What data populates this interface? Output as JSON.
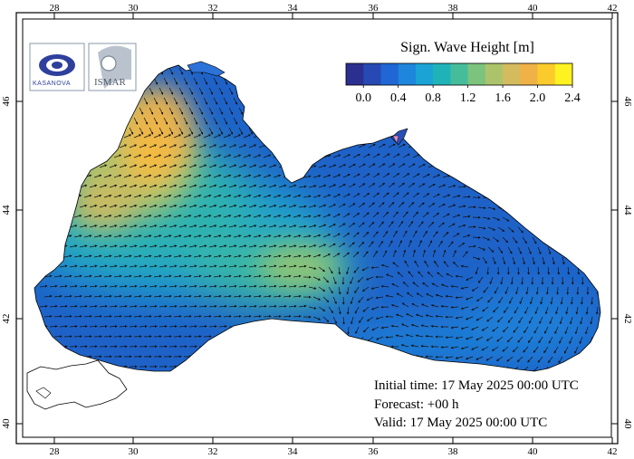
{
  "legend": {
    "title": "Sign. Wave Height [m]",
    "tick_labels": [
      "0.0",
      "0.4",
      "0.8",
      "1.2",
      "1.6",
      "2.0",
      "2.4"
    ],
    "colors": [
      "#2b2f8f",
      "#2749b4",
      "#2066d4",
      "#1e86dc",
      "#1aa3d4",
      "#1fb3b8",
      "#46bd9a",
      "#7cc47d",
      "#acc36c",
      "#d3bb5e",
      "#f0b247",
      "#fbcb2c",
      "#fff221"
    ]
  },
  "axes": {
    "lon_ticks": [
      "28",
      "30",
      "32",
      "34",
      "36",
      "38",
      "40",
      "42"
    ],
    "lat_ticks": [
      "40",
      "42",
      "44",
      "46"
    ]
  },
  "info": {
    "initial_time": "Initial time: 17 May 2025 00:00 UTC",
    "forecast": "Forecast: +00 h",
    "valid": "Valid: 17 May 2025 00:00 UTC"
  },
  "logos": {
    "left_text": "KASANOVA",
    "right_text": "ISMAR"
  },
  "colors": {
    "land": "#ffffff",
    "coast": "#000000",
    "sea_low": "#1e62c8",
    "sea_mid": "#1fb3b8",
    "sea_high": "#f0b247"
  }
}
